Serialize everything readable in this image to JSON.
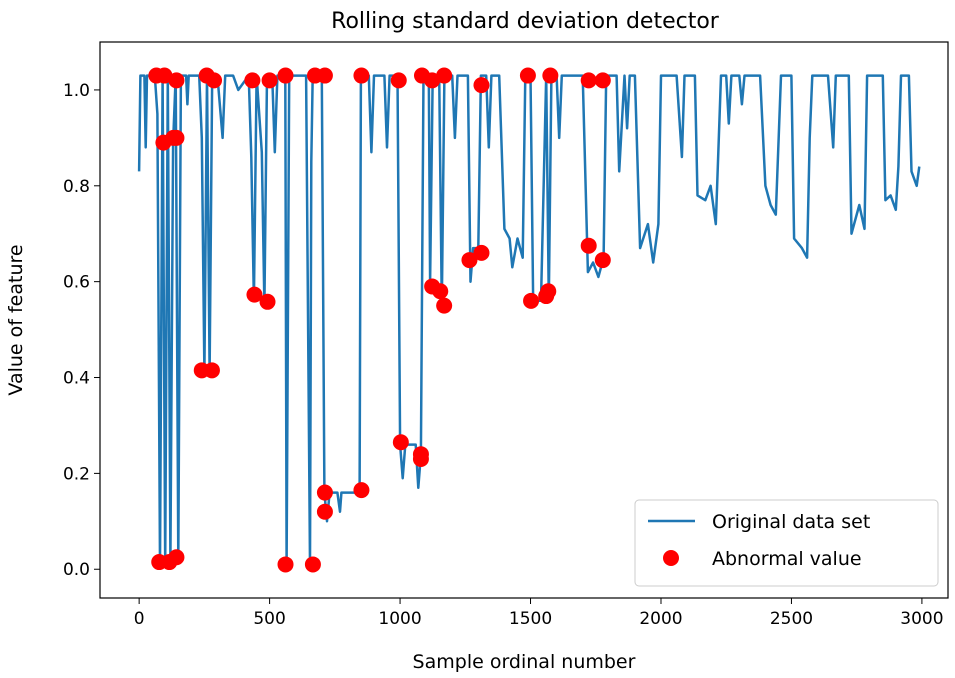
{
  "chart_data": {
    "type": "line",
    "title": "Rolling standard deviation detector",
    "xlabel": "Sample ordinal number",
    "ylabel": "Value of feature",
    "xlim": [
      -150,
      3100
    ],
    "ylim": [
      -0.06,
      1.1
    ],
    "xticks": [
      0,
      500,
      1000,
      1500,
      2000,
      2500,
      3000
    ],
    "xtick_labels": [
      "0",
      "500",
      "1000",
      "1500",
      "2000",
      "2500",
      "3000"
    ],
    "yticks": [
      0.0,
      0.2,
      0.4,
      0.6,
      0.8,
      1.0
    ],
    "ytick_labels": [
      "0.0",
      "0.2",
      "0.4",
      "0.6",
      "0.8",
      "1.0"
    ],
    "grid": false,
    "legend_position": "bottom-right",
    "series": [
      {
        "name": "Original data set",
        "kind": "line",
        "color": "#1f77b4",
        "points": [
          [
            0,
            0.83
          ],
          [
            5,
            1.03
          ],
          [
            20,
            1.03
          ],
          [
            25,
            0.88
          ],
          [
            30,
            1.03
          ],
          [
            60,
            1.03
          ],
          [
            70,
            0.95
          ],
          [
            80,
            0.01
          ],
          [
            90,
            1.03
          ],
          [
            100,
            0.01
          ],
          [
            110,
            1.03
          ],
          [
            120,
            0.02
          ],
          [
            130,
            0.89
          ],
          [
            140,
            1.03
          ],
          [
            150,
            0.02
          ],
          [
            160,
            1.03
          ],
          [
            180,
            1.03
          ],
          [
            185,
            0.97
          ],
          [
            190,
            1.03
          ],
          [
            230,
            1.03
          ],
          [
            240,
            0.9
          ],
          [
            250,
            0.41
          ],
          [
            260,
            1.03
          ],
          [
            270,
            0.41
          ],
          [
            280,
            1.03
          ],
          [
            300,
            1.03
          ],
          [
            320,
            0.9
          ],
          [
            330,
            1.03
          ],
          [
            360,
            1.03
          ],
          [
            380,
            1.0
          ],
          [
            420,
            1.03
          ],
          [
            430,
            0.86
          ],
          [
            440,
            0.56
          ],
          [
            450,
            1.03
          ],
          [
            470,
            0.87
          ],
          [
            480,
            0.55
          ],
          [
            490,
            1.03
          ],
          [
            510,
            1.03
          ],
          [
            520,
            0.87
          ],
          [
            530,
            1.03
          ],
          [
            560,
            1.03
          ],
          [
            565,
            0.01
          ],
          [
            575,
            1.03
          ],
          [
            640,
            1.03
          ],
          [
            655,
            0.01
          ],
          [
            660,
            0.85
          ],
          [
            665,
            1.03
          ],
          [
            700,
            1.03
          ],
          [
            710,
            0.16
          ],
          [
            720,
            0.1
          ],
          [
            730,
            0.16
          ],
          [
            760,
            0.16
          ],
          [
            770,
            0.12
          ],
          [
            775,
            0.16
          ],
          [
            845,
            0.16
          ],
          [
            850,
            1.03
          ],
          [
            880,
            1.03
          ],
          [
            890,
            0.87
          ],
          [
            900,
            1.03
          ],
          [
            940,
            1.03
          ],
          [
            950,
            0.88
          ],
          [
            960,
            1.03
          ],
          [
            990,
            1.03
          ],
          [
            1000,
            0.26
          ],
          [
            1010,
            0.19
          ],
          [
            1020,
            0.26
          ],
          [
            1060,
            0.26
          ],
          [
            1070,
            0.17
          ],
          [
            1080,
            0.24
          ],
          [
            1090,
            1.03
          ],
          [
            1110,
            1.03
          ],
          [
            1115,
            0.6
          ],
          [
            1125,
            1.03
          ],
          [
            1150,
            1.03
          ],
          [
            1160,
            0.55
          ],
          [
            1170,
            1.03
          ],
          [
            1200,
            1.03
          ],
          [
            1210,
            0.9
          ],
          [
            1220,
            1.03
          ],
          [
            1260,
            1.03
          ],
          [
            1270,
            0.6
          ],
          [
            1280,
            0.67
          ],
          [
            1300,
            0.67
          ],
          [
            1310,
            1.03
          ],
          [
            1330,
            1.03
          ],
          [
            1340,
            0.88
          ],
          [
            1350,
            1.03
          ],
          [
            1380,
            1.03
          ],
          [
            1400,
            0.71
          ],
          [
            1420,
            0.69
          ],
          [
            1430,
            0.63
          ],
          [
            1450,
            0.69
          ],
          [
            1470,
            0.65
          ],
          [
            1480,
            1.03
          ],
          [
            1500,
            1.03
          ],
          [
            1510,
            0.57
          ],
          [
            1520,
            0.56
          ],
          [
            1540,
            0.56
          ],
          [
            1560,
            1.03
          ],
          [
            1570,
            0.56
          ],
          [
            1580,
            1.03
          ],
          [
            1600,
            1.03
          ],
          [
            1610,
            0.9
          ],
          [
            1620,
            1.03
          ],
          [
            1700,
            1.03
          ],
          [
            1720,
            0.62
          ],
          [
            1740,
            0.64
          ],
          [
            1760,
            0.61
          ],
          [
            1780,
            0.65
          ],
          [
            1790,
            1.03
          ],
          [
            1830,
            1.03
          ],
          [
            1840,
            0.83
          ],
          [
            1860,
            1.03
          ],
          [
            1870,
            0.92
          ],
          [
            1880,
            1.03
          ],
          [
            1900,
            1.03
          ],
          [
            1920,
            0.67
          ],
          [
            1950,
            0.72
          ],
          [
            1970,
            0.64
          ],
          [
            1990,
            0.72
          ],
          [
            2000,
            1.03
          ],
          [
            2060,
            1.03
          ],
          [
            2080,
            0.86
          ],
          [
            2090,
            1.03
          ],
          [
            2130,
            1.03
          ],
          [
            2140,
            0.78
          ],
          [
            2170,
            0.77
          ],
          [
            2190,
            0.8
          ],
          [
            2210,
            0.72
          ],
          [
            2230,
            1.03
          ],
          [
            2250,
            1.03
          ],
          [
            2260,
            0.93
          ],
          [
            2270,
            1.03
          ],
          [
            2300,
            1.03
          ],
          [
            2310,
            0.97
          ],
          [
            2320,
            1.03
          ],
          [
            2380,
            1.03
          ],
          [
            2400,
            0.8
          ],
          [
            2420,
            0.76
          ],
          [
            2440,
            0.74
          ],
          [
            2460,
            1.03
          ],
          [
            2500,
            1.03
          ],
          [
            2510,
            0.69
          ],
          [
            2540,
            0.67
          ],
          [
            2560,
            0.65
          ],
          [
            2570,
            0.9
          ],
          [
            2580,
            1.03
          ],
          [
            2640,
            1.03
          ],
          [
            2660,
            0.88
          ],
          [
            2670,
            1.03
          ],
          [
            2720,
            1.03
          ],
          [
            2730,
            0.7
          ],
          [
            2760,
            0.76
          ],
          [
            2780,
            0.71
          ],
          [
            2790,
            1.03
          ],
          [
            2850,
            1.03
          ],
          [
            2860,
            0.77
          ],
          [
            2880,
            0.78
          ],
          [
            2900,
            0.75
          ],
          [
            2910,
            0.84
          ],
          [
            2920,
            1.03
          ],
          [
            2950,
            1.03
          ],
          [
            2960,
            0.83
          ],
          [
            2980,
            0.8
          ],
          [
            2990,
            0.84
          ]
        ]
      },
      {
        "name": "Abnormal value",
        "kind": "scatter",
        "color": "#ff0000",
        "points": [
          [
            66,
            1.03
          ],
          [
            97,
            1.03
          ],
          [
            143,
            1.02
          ],
          [
            259,
            1.03
          ],
          [
            287,
            1.02
          ],
          [
            434,
            1.02
          ],
          [
            500,
            1.02
          ],
          [
            561,
            1.03
          ],
          [
            674,
            1.03
          ],
          [
            712,
            1.03
          ],
          [
            852,
            1.03
          ],
          [
            995,
            1.02
          ],
          [
            1084,
            1.03
          ],
          [
            1123,
            1.02
          ],
          [
            1169,
            1.03
          ],
          [
            1312,
            1.01
          ],
          [
            1490,
            1.03
          ],
          [
            1576,
            1.03
          ],
          [
            1723,
            1.02
          ],
          [
            1777,
            1.02
          ],
          [
            93,
            0.89
          ],
          [
            131,
            0.9
          ],
          [
            143,
            0.9
          ],
          [
            77,
            0.015
          ],
          [
            116,
            0.015
          ],
          [
            143,
            0.025
          ],
          [
            240,
            0.415
          ],
          [
            279,
            0.415
          ],
          [
            442,
            0.573
          ],
          [
            492,
            0.558
          ],
          [
            561,
            0.01
          ],
          [
            666,
            0.01
          ],
          [
            712,
            0.16
          ],
          [
            712,
            0.12
          ],
          [
            852,
            0.165
          ],
          [
            1003,
            0.265
          ],
          [
            1080,
            0.24
          ],
          [
            1080,
            0.23
          ],
          [
            1123,
            0.59
          ],
          [
            1154,
            0.58
          ],
          [
            1169,
            0.55
          ],
          [
            1266,
            0.645
          ],
          [
            1312,
            0.66
          ],
          [
            1502,
            0.56
          ],
          [
            1560,
            0.57
          ],
          [
            1568,
            0.58
          ],
          [
            1723,
            0.675
          ],
          [
            1777,
            0.645
          ]
        ]
      }
    ]
  }
}
